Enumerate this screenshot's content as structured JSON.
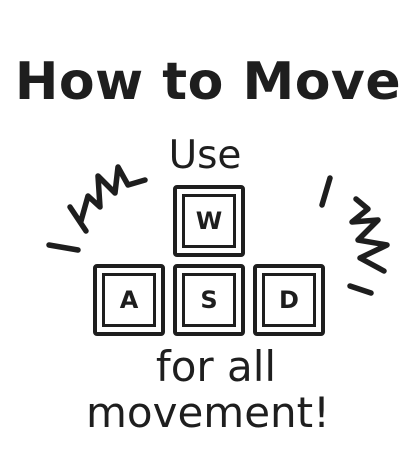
{
  "title": "How to Move",
  "subtitle": "Use",
  "keys": {
    "w": "W",
    "a": "A",
    "s": "S",
    "d": "D"
  },
  "caption": {
    "line1": "for all",
    "line2": "movement!"
  },
  "colors": {
    "ink": "#1e1e1e",
    "background": "#ffffff"
  },
  "icons": {
    "left_burst": "action-burst-icon",
    "right_burst": "action-burst-icon"
  }
}
